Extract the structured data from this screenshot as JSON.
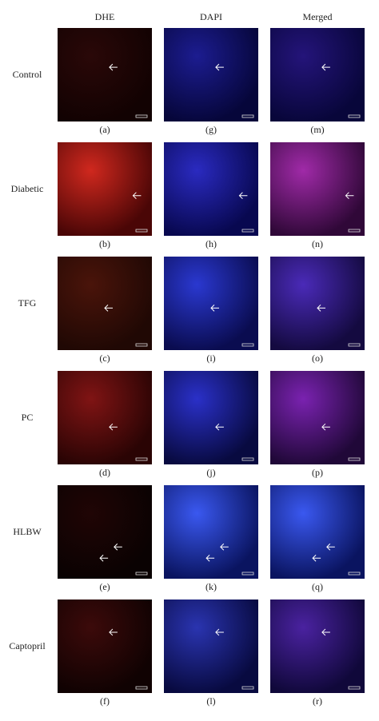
{
  "column_headers": [
    "DHE",
    "DAPI",
    "Merged"
  ],
  "rows": [
    {
      "label": "Control",
      "panels": [
        "(a)",
        "(g)",
        "(m)"
      ]
    },
    {
      "label": "Diabetic",
      "panels": [
        "(b)",
        "(h)",
        "(n)"
      ]
    },
    {
      "label": "TFG",
      "panels": [
        "(c)",
        "(i)",
        "(o)"
      ]
    },
    {
      "label": "PC",
      "panels": [
        "(d)",
        "(j)",
        "(p)"
      ]
    },
    {
      "label": "HLBW",
      "panels": [
        "(e)",
        "(k)",
        "(q)"
      ]
    },
    {
      "label": "Captopril",
      "panels": [
        "(f)",
        "(l)",
        "(r)"
      ]
    }
  ]
}
